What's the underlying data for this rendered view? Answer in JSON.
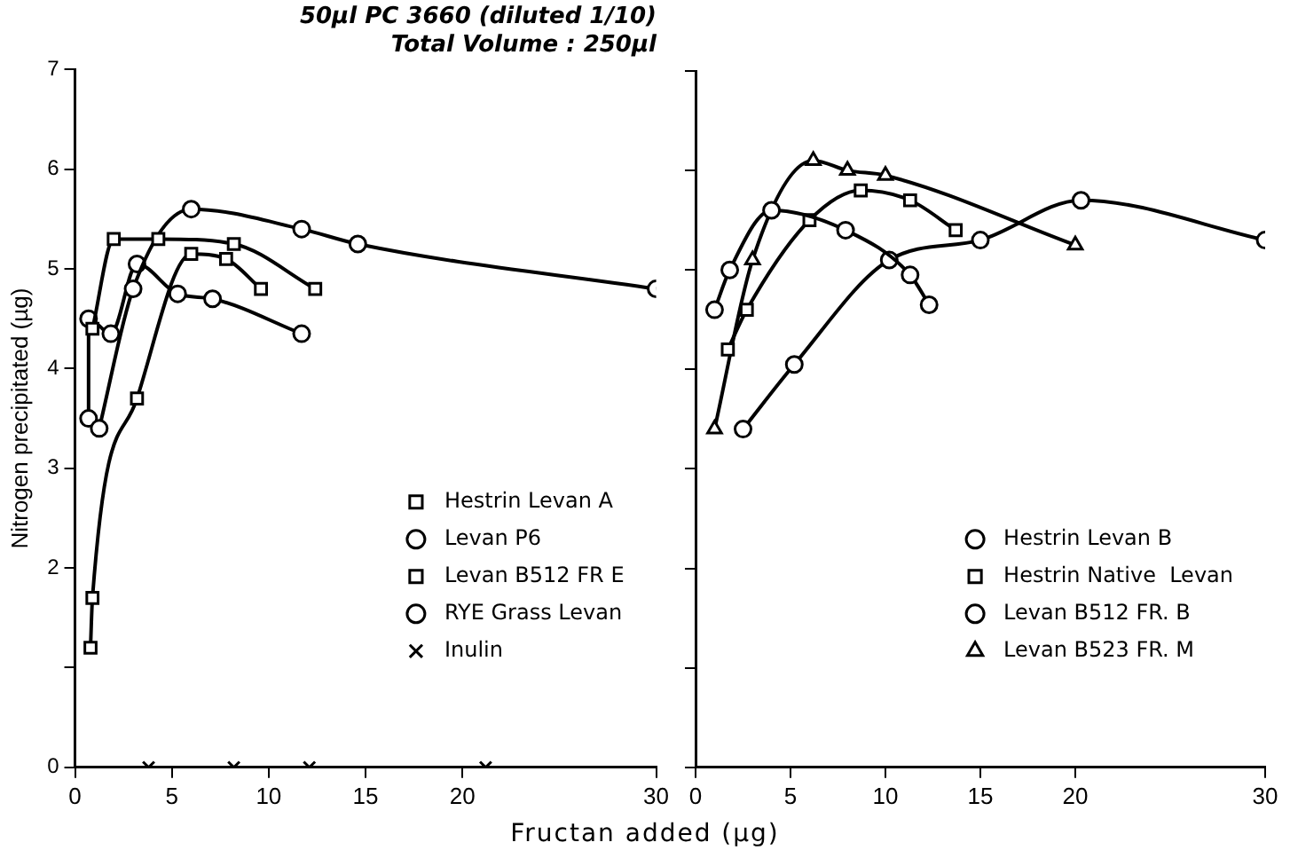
{
  "chart_data": [
    {
      "type": "line",
      "title": "50µl PC 3660 (diluted 1/10)",
      "subtitle": "Total Volume : 250µl",
      "xlabel": "Fructan added (µg)",
      "ylabel": "Nitrogen precipitated (µg)",
      "xlim": [
        0,
        30
      ],
      "xticks": [
        0,
        5,
        10,
        15,
        20,
        30
      ],
      "ylim": [
        0,
        7
      ],
      "yticks": [
        0,
        {
          "value": 1,
          "label": null
        },
        2,
        3,
        4,
        5,
        6,
        7
      ],
      "legend": "bottom right",
      "grid": false,
      "line_style": "solid",
      "series": [
        {
          "name": "Hestrin Levan A",
          "color": "#000000",
          "marker": "square",
          "x": [
            0.9,
            2.0,
            4.3,
            8.2,
            12.4
          ],
          "values": [
            4.4,
            5.3,
            5.3,
            5.25,
            4.8
          ]
        },
        {
          "name": "Levan P6",
          "color": "#000000",
          "marker": "circle",
          "x": [
            1.25,
            3.0,
            6.0,
            11.7,
            14.6,
            30
          ],
          "values": [
            3.4,
            4.8,
            5.6,
            5.4,
            5.25,
            4.8
          ]
        },
        {
          "name": "Levan B512 FR E",
          "color": "#000000",
          "marker": "square",
          "x": [
            0.8,
            0.9,
            3.2,
            6.0,
            7.8,
            9.6
          ],
          "values": [
            1.2,
            1.7,
            3.7,
            5.15,
            5.1,
            4.8
          ]
        },
        {
          "name": "RYE Grass Levan",
          "color": "#000000",
          "marker": "circle",
          "x": [
            0.7,
            0.7,
            1.85,
            3.2,
            5.3,
            7.1,
            11.7
          ],
          "values": [
            3.5,
            4.5,
            4.35,
            5.05,
            4.75,
            4.7,
            4.35
          ]
        },
        {
          "name": "Inulin",
          "type": "scatter",
          "color": "#000000",
          "marker": "cross",
          "x": [
            3.8,
            8.2,
            12.1,
            21.2
          ],
          "values": [
            0,
            0,
            0,
            0
          ]
        }
      ]
    },
    {
      "type": "line",
      "xlim": [
        0,
        30
      ],
      "xticks": [
        0,
        5,
        10,
        15,
        20,
        30
      ],
      "ylim": [
        0,
        7
      ],
      "yticks": [
        0,
        {
          "value": 1,
          "label": null
        },
        2,
        3,
        4,
        5,
        6,
        7
      ],
      "tick_labels": "x",
      "legend": "bottom right",
      "grid": false,
      "line_style": "solid",
      "series": [
        {
          "name": "Hestrin Levan B",
          "color": "#000000",
          "marker": "circle",
          "x": [
            1.0,
            1.8,
            4.0,
            7.9,
            11.3,
            12.3
          ],
          "values": [
            4.6,
            5.0,
            5.6,
            5.4,
            4.95,
            4.65
          ]
        },
        {
          "name": "Hestrin Native  Levan",
          "color": "#000000",
          "marker": "square",
          "x": [
            1.7,
            2.7,
            6.0,
            8.7,
            11.3,
            13.7
          ],
          "values": [
            4.2,
            4.6,
            5.5,
            5.8,
            5.7,
            5.4
          ]
        },
        {
          "name": "Levan B512 FR. B",
          "color": "#000000",
          "marker": "circle",
          "x": [
            2.5,
            5.2,
            10.2,
            15.0,
            20.3,
            30
          ],
          "values": [
            3.4,
            4.05,
            5.1,
            5.3,
            5.7,
            5.3
          ]
        },
        {
          "name": "Levan B523 FR. M",
          "color": "#000000",
          "marker": "triangle",
          "x": [
            1.0,
            3.0,
            6.2,
            8.0,
            10.0,
            20.0
          ],
          "values": [
            3.4,
            5.1,
            6.1,
            6.0,
            5.95,
            5.25
          ]
        }
      ]
    }
  ]
}
